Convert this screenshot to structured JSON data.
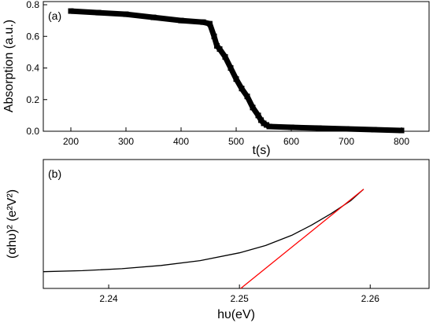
{
  "chart_data": [
    {
      "panel_label": "(a)",
      "type": "line",
      "xlabel": "t(s)",
      "ylabel": "Absorption (a.u.)",
      "xlim": [
        150,
        850
      ],
      "ylim": [
        0,
        0.82
      ],
      "xticks": [
        200,
        300,
        400,
        500,
        600,
        700,
        800
      ],
      "xtick_labels": [
        "200",
        "300",
        "400",
        "500",
        "600",
        "700",
        "800"
      ],
      "yticks": [
        0,
        0.2,
        0.4,
        0.6,
        0.8
      ],
      "ytick_labels": [
        "0.0",
        "0.2",
        "0.4",
        "0.6",
        "0.8"
      ],
      "grid": false,
      "series": [
        {
          "color": "#000000",
          "marker": "square",
          "x": [
            200,
            250,
            300,
            350,
            400,
            440,
            452,
            460,
            465,
            470,
            480,
            490,
            500,
            510,
            520,
            530,
            540,
            545,
            550,
            555,
            560,
            600,
            650,
            700,
            750,
            800
          ],
          "y": [
            0.76,
            0.75,
            0.74,
            0.72,
            0.7,
            0.69,
            0.68,
            0.6,
            0.54,
            0.52,
            0.47,
            0.4,
            0.33,
            0.27,
            0.22,
            0.15,
            0.1,
            0.07,
            0.05,
            0.04,
            0.03,
            0.025,
            0.02,
            0.015,
            0.01,
            0.005
          ]
        }
      ]
    },
    {
      "panel_label": "(b)",
      "type": "line",
      "xlabel": "hυ(eV)",
      "ylabel": "(αhυ)² (e²V²)",
      "xlim": [
        2.235,
        2.2645
      ],
      "ylim": [
        0,
        1
      ],
      "xticks": [
        2.24,
        2.25,
        2.26
      ],
      "xtick_labels": [
        "2.24",
        "2.25",
        "2.26"
      ],
      "yticks": [],
      "grid": false,
      "series": [
        {
          "color": "#000000",
          "x": [
            2.235,
            2.238,
            2.241,
            2.244,
            2.247,
            2.25,
            2.252,
            2.254,
            2.2555,
            2.257,
            2.2585,
            2.2595
          ],
          "y": [
            0.13,
            0.138,
            0.153,
            0.178,
            0.216,
            0.276,
            0.333,
            0.412,
            0.49,
            0.58,
            0.68,
            0.77
          ]
        },
        {
          "color": "#ff0000",
          "x": [
            2.2501,
            2.2595
          ],
          "y": [
            0.0,
            0.77
          ]
        }
      ]
    }
  ]
}
